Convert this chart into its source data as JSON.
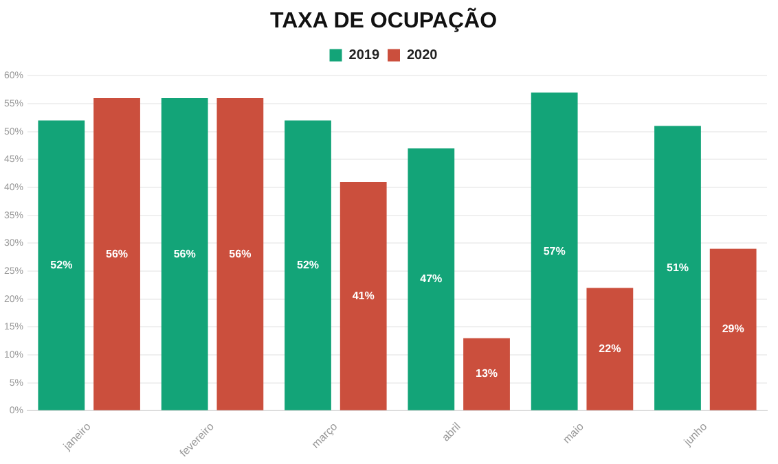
{
  "chart_data": {
    "type": "bar",
    "title": "TAXA DE OCUPAÇÃO",
    "categories": [
      "janeiro",
      "fevereiro",
      "março",
      "abril",
      "maio",
      "junho"
    ],
    "series": [
      {
        "name": "2019",
        "color": "#13a478",
        "values": [
          52,
          56,
          52,
          47,
          57,
          51
        ],
        "value_labels": [
          "52%",
          "56%",
          "52%",
          "47%",
          "57%",
          "51%"
        ]
      },
      {
        "name": "2020",
        "color": "#cb4f3d",
        "values": [
          56,
          56,
          41,
          13,
          22,
          29
        ],
        "value_labels": [
          "56%",
          "56%",
          "41%",
          "13%",
          "22%",
          "29%"
        ]
      }
    ],
    "ylim": [
      0,
      60
    ],
    "yticks": [
      {
        "value": 0,
        "label": "0%"
      },
      {
        "value": 5,
        "label": "5%"
      },
      {
        "value": 10,
        "label": "10%"
      },
      {
        "value": 15,
        "label": "15%"
      },
      {
        "value": 20,
        "label": "20%"
      },
      {
        "value": 25,
        "label": "25%"
      },
      {
        "value": 30,
        "label": "30%"
      },
      {
        "value": 35,
        "label": "35%"
      },
      {
        "value": 40,
        "label": "40%"
      },
      {
        "value": 45,
        "label": "45%"
      },
      {
        "value": 50,
        "label": "50%"
      },
      {
        "value": 55,
        "label": "55%"
      },
      {
        "value": 60,
        "label": "60%"
      }
    ],
    "grid": "y",
    "legend": "top"
  }
}
